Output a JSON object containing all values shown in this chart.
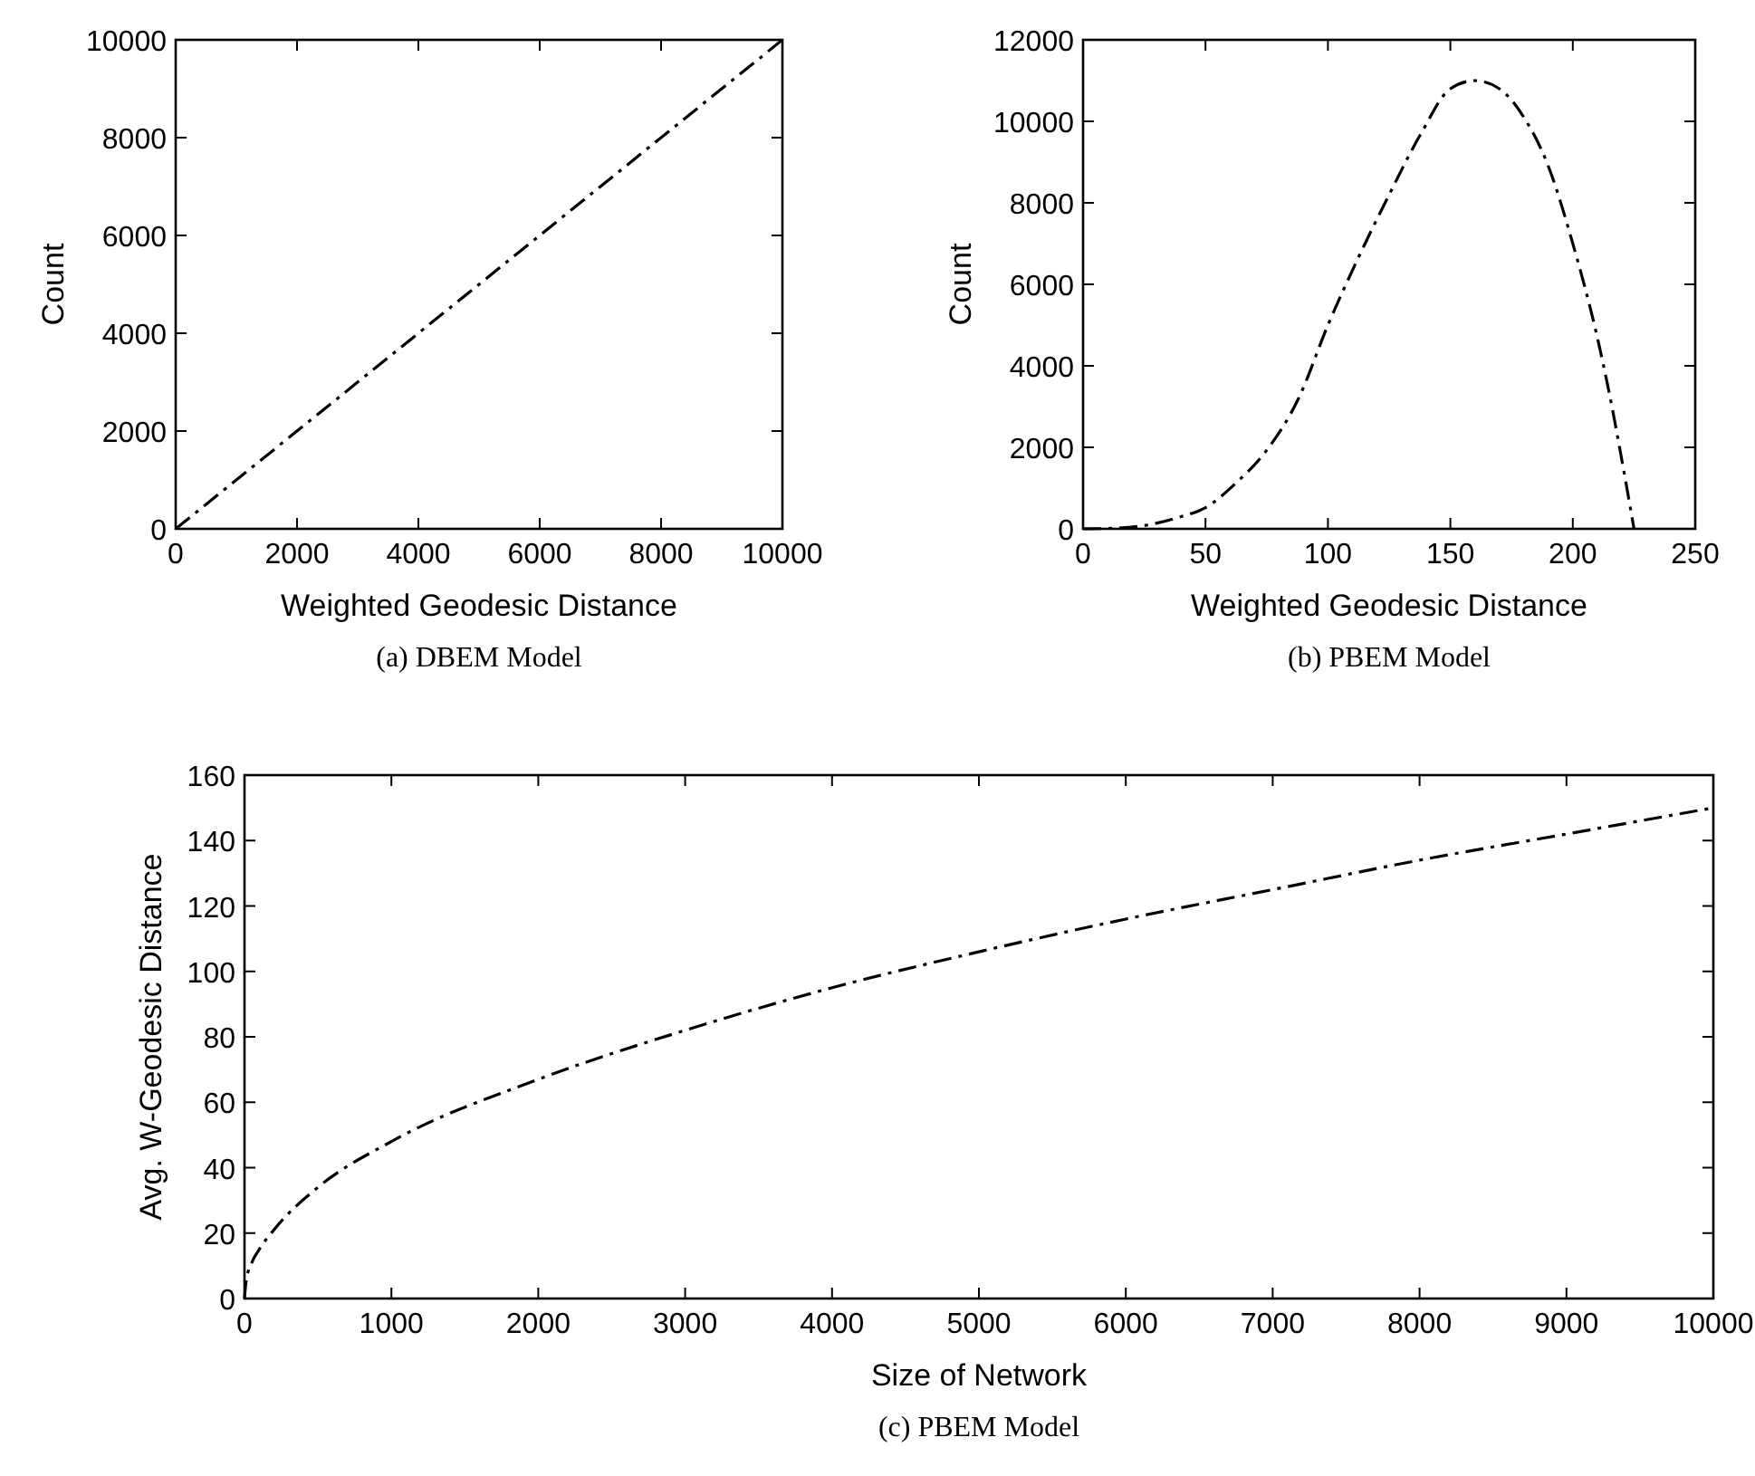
{
  "chart_data": [
    {
      "type": "line",
      "title": "(a) DBEM Model",
      "xlabel": "Weighted Geodesic Distance",
      "ylabel": "Count",
      "xlim": [
        0,
        10000
      ],
      "ylim": [
        0,
        10000
      ],
      "xticks": [
        0,
        2000,
        4000,
        6000,
        8000,
        10000
      ],
      "yticks": [
        0,
        2000,
        4000,
        6000,
        8000,
        10000
      ],
      "line_style": "dashed",
      "grid": false,
      "series": [
        {
          "color": "#000000",
          "x": [
            0,
            10000
          ],
          "values": [
            0,
            10000
          ]
        }
      ]
    },
    {
      "type": "line",
      "title": "(b) PBEM Model",
      "xlabel": "Weighted Geodesic Distance",
      "ylabel": "Count",
      "xlim": [
        0,
        250
      ],
      "ylim": [
        0,
        12000
      ],
      "xticks": [
        0,
        50,
        100,
        150,
        200,
        250
      ],
      "yticks": [
        0,
        2000,
        4000,
        6000,
        8000,
        10000,
        12000
      ],
      "line_style": "dashed",
      "grid": false,
      "series": [
        {
          "color": "#000000",
          "x": [
            0,
            10,
            25,
            40,
            50,
            62,
            75,
            88,
            100,
            112,
            125,
            138,
            150,
            160,
            170,
            180,
            190,
            200,
            210,
            215,
            220,
            225
          ],
          "values": [
            0,
            10,
            80,
            300,
            520,
            1100,
            1930,
            3200,
            5000,
            6600,
            8200,
            9700,
            10800,
            11000,
            10800,
            10100,
            8900,
            7000,
            4700,
            3300,
            1700,
            0
          ]
        }
      ]
    },
    {
      "type": "line",
      "title": "(c) PBEM Model",
      "xlabel": "Size of Network",
      "ylabel": "Avg. W-Geodesic Distance",
      "xlim": [
        0,
        10000
      ],
      "ylim": [
        0,
        160
      ],
      "xticks": [
        0,
        1000,
        2000,
        3000,
        4000,
        5000,
        6000,
        7000,
        8000,
        9000,
        10000
      ],
      "yticks": [
        0,
        20,
        40,
        60,
        80,
        100,
        120,
        140,
        160
      ],
      "line_style": "dashed",
      "grid": false,
      "series": [
        {
          "color": "#000000",
          "x": [
            0,
            10,
            50,
            100,
            200,
            500,
            1000,
            2000,
            3000,
            4000,
            5000,
            6000,
            7000,
            8000,
            9000,
            10000
          ],
          "values": [
            0,
            5,
            11,
            15,
            21,
            34,
            48,
            67,
            82,
            95,
            106,
            116,
            125,
            134,
            142,
            150
          ]
        }
      ]
    }
  ]
}
